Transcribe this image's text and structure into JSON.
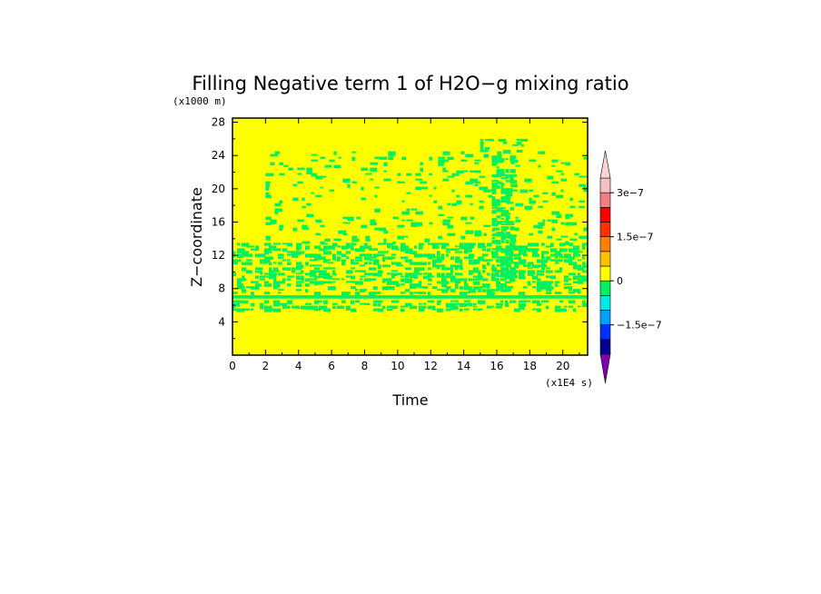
{
  "chart_data": {
    "type": "heatmap",
    "title": "Filling Negative term 1 of H2O−g mixing ratio",
    "xlabel": "Time",
    "ylabel": "Z−coordinate",
    "x_unit": "(x1E4 s)",
    "y_unit": "(x1000 m)",
    "xlim": [
      0,
      21.5
    ],
    "ylim": [
      0,
      28.5
    ],
    "x_ticks": [
      0,
      2,
      4,
      6,
      8,
      10,
      12,
      14,
      16,
      18,
      20
    ],
    "y_ticks": [
      4,
      8,
      12,
      16,
      20,
      24,
      28
    ],
    "x_tick_labels": [
      "0",
      "2",
      "4",
      "6",
      "8",
      "10",
      "12",
      "14",
      "16",
      "18",
      "20"
    ],
    "y_tick_labels": [
      "4",
      "8",
      "12",
      "16",
      "20",
      "24",
      "28"
    ],
    "background_value": 0,
    "colorbar": {
      "levels": [
        -2.5e-07,
        -2e-07,
        -1.5e-07,
        -1e-07,
        -5e-08,
        0,
        5e-08,
        1e-07,
        1.5e-07,
        2e-07,
        2.5e-07,
        3e-07,
        3.5e-07
      ],
      "colors": [
        "#8000b0",
        "#000090",
        "#0030ff",
        "#00a0ff",
        "#00e8e8",
        "#00f060",
        "#ffff00",
        "#ffc000",
        "#ff8000",
        "#ff3000",
        "#ff0000",
        "#f08080",
        "#f4c0c0",
        "#fad4d4"
      ],
      "labels": [
        {
          "value": -1.5e-07,
          "text": "−1.5e−7"
        },
        {
          "value": 0,
          "text": "0"
        },
        {
          "value": 1.5e-07,
          "text": "1.5e−7"
        },
        {
          "value": 3e-07,
          "text": "3e−7"
        }
      ]
    },
    "bands": [
      {
        "name": "persistent-layer",
        "value": -5e-08,
        "z_range": [
          6.8,
          7.2
        ],
        "t_range": [
          0,
          21.5
        ],
        "density": 1.0
      },
      {
        "name": "lower-layer",
        "value": -5e-08,
        "z_range": [
          5.5,
          6.6
        ],
        "t_range": [
          0,
          21.5
        ],
        "density": 0.45
      },
      {
        "name": "low-patch-layer",
        "value": -5e-08,
        "z_range": [
          7.4,
          8.6
        ],
        "t_range": [
          0,
          21.5
        ],
        "density": 0.35
      },
      {
        "name": "main-layer",
        "value": -5e-08,
        "z_range": [
          8.6,
          13.5
        ],
        "t_range": [
          0,
          21.5
        ],
        "density": 0.45
      },
      {
        "name": "upper-scatter",
        "value": -5e-08,
        "z_range": [
          13.5,
          24.5
        ],
        "t_range": [
          2,
          21.5
        ],
        "density": 0.12
      },
      {
        "name": "top-scatter",
        "value": -5e-08,
        "z_range": [
          24.5,
          26
        ],
        "t_range": [
          15,
          17.5
        ],
        "density": 0.25
      },
      {
        "name": "column-t16",
        "value": -5e-08,
        "z_range": [
          8,
          24
        ],
        "t_range": [
          15.7,
          17
        ],
        "density": 0.55
      }
    ]
  }
}
